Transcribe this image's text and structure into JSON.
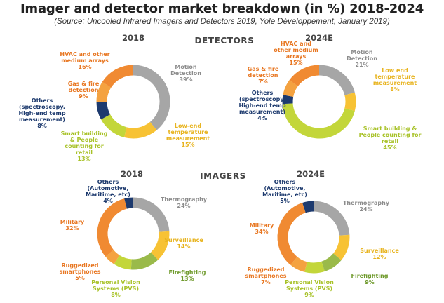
{
  "title": "Imager and detector market breakdown (in %) 2018-2024",
  "subtitle": "(Source: Uncooled Infrared Imagers and Detectors 2019, Yole Développement, January 2019)",
  "colors": {
    "grey": "#a6a6a6",
    "yellow": "#f7c234",
    "lime": "#c3d63a",
    "green": "#9aba4a",
    "navy": "#1d3a6e",
    "orange": "#f08a32",
    "light_orange": "#f4a240",
    "text_grey": "#8c8c8c",
    "text_yellow": "#e8b420",
    "text_lime": "#a8c228",
    "text_green": "#6f9a2c",
    "text_navy": "#1d3a6e",
    "text_orange": "#e87722"
  },
  "chart_data": [
    {
      "type": "pie",
      "section": "DETECTORS",
      "title": "2018",
      "series": [
        {
          "name": "Motion Detection",
          "value": 39,
          "color": "grey",
          "label_lines": [
            "Motion",
            "Detection",
            "39%"
          ]
        },
        {
          "name": "Low end temperature measurement",
          "value": 15,
          "color": "yellow",
          "label_lines": [
            "Low-end",
            "temperature",
            "measurement",
            "15%"
          ]
        },
        {
          "name": "Smart building & People counting for retail",
          "value": 13,
          "color": "lime",
          "label_lines": [
            "Smart building",
            "& People",
            "counting for",
            "retail",
            "13%"
          ]
        },
        {
          "name": "Others (spectroscopy, High-end temp measurement)",
          "value": 8,
          "color": "navy",
          "label_lines": [
            "Others",
            "(spectroscopy,",
            "High-end temp",
            "measurement)",
            "8%"
          ]
        },
        {
          "name": "Gas & fire detection",
          "value": 9,
          "color": "light_orange",
          "label_lines": [
            "Gas & fire",
            "detection",
            "9%"
          ]
        },
        {
          "name": "HVAC and other medium arrays",
          "value": 16,
          "color": "orange",
          "label_lines": [
            "HVAC and other",
            "medium arrays",
            "16%"
          ]
        }
      ]
    },
    {
      "type": "pie",
      "section": "DETECTORS",
      "title": "2024E",
      "series": [
        {
          "name": "Motion Detection",
          "value": 21,
          "color": "grey",
          "label_lines": [
            "Motion",
            "Detection",
            "21%"
          ]
        },
        {
          "name": "Low end temperature measurement",
          "value": 8,
          "color": "yellow",
          "label_lines": [
            "Low end",
            "temperature",
            "measurement",
            "8%"
          ]
        },
        {
          "name": "Smart building & People counting for retail",
          "value": 45,
          "color": "lime",
          "label_lines": [
            "Smart building &",
            "People counting for",
            "retail",
            "45%"
          ]
        },
        {
          "name": "Others (spectroscopy, High-end temp measurement)",
          "value": 4,
          "color": "navy",
          "label_lines": [
            "Others",
            "(spectroscopy,",
            "High-end temp",
            "measurement)",
            "4%"
          ]
        },
        {
          "name": "Gas & fire detection",
          "value": 7,
          "color": "light_orange",
          "label_lines": [
            "Gas & fire",
            "detection",
            "7%"
          ]
        },
        {
          "name": "HVAC and other medium arrays",
          "value": 15,
          "color": "orange",
          "label_lines": [
            "HVAC and",
            "other medium",
            "arrays",
            "15%"
          ]
        }
      ]
    },
    {
      "type": "pie",
      "section": "IMAGERS",
      "title": "2018",
      "series": [
        {
          "name": "Thermography",
          "value": 24,
          "color": "grey",
          "label_lines": [
            "Thermography",
            "24%"
          ]
        },
        {
          "name": "Surveillance",
          "value": 14,
          "color": "yellow",
          "label_lines": [
            "Surveillance",
            "14%"
          ]
        },
        {
          "name": "Firefighting",
          "value": 13,
          "color": "green",
          "label_lines": [
            "Firefighting",
            "13%"
          ]
        },
        {
          "name": "Personal Vision Systems (PVS)",
          "value": 8,
          "color": "lime",
          "label_lines": [
            "Personal Vision",
            "Systems (PVS)",
            "8%"
          ]
        },
        {
          "name": "Ruggedized smartphones",
          "value": 5,
          "color": "light_orange",
          "label_lines": [
            "Ruggedized",
            "smartphones",
            "5%"
          ]
        },
        {
          "name": "Military",
          "value": 32,
          "color": "orange",
          "label_lines": [
            "Military",
            "32%"
          ]
        },
        {
          "name": "Others (Automotive, Maritime, etc)",
          "value": 4,
          "color": "navy",
          "label_lines": [
            "Others",
            "(Automotive,",
            "Maritime, etc)",
            "4%"
          ]
        }
      ]
    },
    {
      "type": "pie",
      "section": "IMAGERS",
      "title": "2024E",
      "series": [
        {
          "name": "Thermography",
          "value": 24,
          "color": "grey",
          "label_lines": [
            "Thermography",
            "24%"
          ]
        },
        {
          "name": "Surveillance",
          "value": 12,
          "color": "yellow",
          "label_lines": [
            "Surveillance",
            "12%"
          ]
        },
        {
          "name": "Firefighting",
          "value": 9,
          "color": "green",
          "label_lines": [
            "Firefighting",
            "9%"
          ]
        },
        {
          "name": "Personal Vision Systems (PVS)",
          "value": 9,
          "color": "lime",
          "label_lines": [
            "Personal Vision",
            "Systems (PVS)",
            "9%"
          ]
        },
        {
          "name": "Ruggedized smartphones",
          "value": 7,
          "color": "light_orange",
          "label_lines": [
            "Ruggedized",
            "smartphones",
            "7%"
          ]
        },
        {
          "name": "Military",
          "value": 34,
          "color": "orange",
          "label_lines": [
            "Military",
            "34%"
          ]
        },
        {
          "name": "Others (Automotive, Maritime, etc)",
          "value": 5,
          "color": "navy",
          "label_lines": [
            "Others",
            "(Automotive,",
            "Maritime, etc)",
            "5%"
          ]
        }
      ]
    }
  ]
}
